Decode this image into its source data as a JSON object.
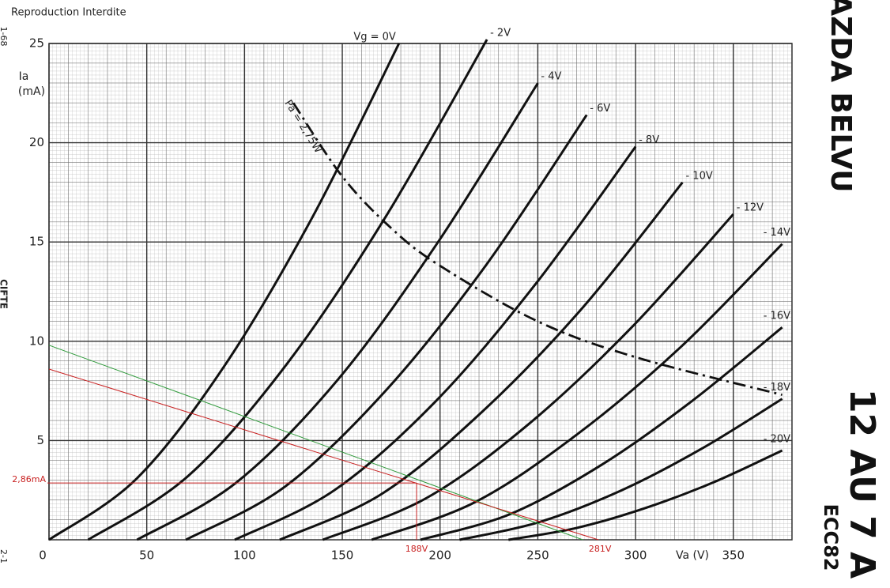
{
  "chart_data": {
    "type": "line",
    "title": "Reproduction Interdite",
    "xlabel": "Va (V)",
    "ylabel": [
      "Ia",
      "(mA)"
    ],
    "xlim": [
      0,
      380
    ],
    "ylim": [
      0,
      25
    ],
    "xticks": [
      0,
      50,
      100,
      150,
      200,
      250,
      300,
      350
    ],
    "yticks": [
      5,
      10,
      15,
      20,
      25
    ],
    "grid": true,
    "series": [
      {
        "name": "Vg = 0V",
        "color": "#111111",
        "x": [
          0,
          45,
          90,
          135,
          179
        ],
        "values": [
          0,
          3.1,
          8.8,
          16.3,
          25
        ]
      },
      {
        "name": "- 2V",
        "color": "#111111",
        "x": [
          20,
          71,
          122,
          173,
          224
        ],
        "values": [
          0,
          3.2,
          8.9,
          16.4,
          25.2
        ]
      },
      {
        "name": "- 4V",
        "color": "#111111",
        "x": [
          45,
          96,
          148,
          199,
          250
        ],
        "values": [
          0,
          2.9,
          8.1,
          15,
          23
        ]
      },
      {
        "name": "- 6V",
        "color": "#111111",
        "x": [
          70,
          121,
          173,
          224,
          275
        ],
        "values": [
          0,
          2.7,
          7.6,
          13.9,
          21.4
        ]
      },
      {
        "name": "- 8V",
        "color": "#111111",
        "x": [
          95,
          146,
          198,
          249,
          300
        ],
        "values": [
          0,
          2.5,
          7,
          12.9,
          19.8
        ]
      },
      {
        "name": "- 10V",
        "color": "#111111",
        "x": [
          118,
          170,
          221,
          273,
          324
        ],
        "values": [
          0,
          2.3,
          6.4,
          11.7,
          18
        ]
      },
      {
        "name": "- 12V",
        "color": "#111111",
        "x": [
          140,
          193,
          245,
          298,
          350
        ],
        "values": [
          0,
          2.1,
          5.8,
          10.7,
          16.4
        ]
      },
      {
        "name": "- 14V",
        "color": "#111111",
        "x": [
          165,
          218,
          270,
          323,
          375
        ],
        "values": [
          0,
          1.9,
          5.3,
          9.7,
          14.9
        ]
      },
      {
        "name": "- 16V",
        "color": "#111111",
        "x": [
          190,
          236,
          283,
          329,
          375
        ],
        "values": [
          0,
          1.3,
          3.8,
          7,
          10.7
        ]
      },
      {
        "name": "- 18V",
        "color": "#111111",
        "x": [
          210,
          251,
          293,
          334,
          375
        ],
        "values": [
          0,
          0.9,
          2.5,
          4.6,
          7.1
        ]
      },
      {
        "name": "- 20V",
        "color": "#111111",
        "x": [
          235,
          270,
          305,
          340,
          375
        ],
        "values": [
          0,
          0.6,
          1.6,
          2.9,
          4.5
        ]
      }
    ],
    "power_curve": {
      "name": "Pa = 2,75W",
      "color": "#111111",
      "x": [
        125,
        150,
        175,
        200,
        250,
        300,
        375
      ],
      "values": [
        22,
        18.3,
        15.7,
        13.8,
        11,
        9.2,
        7.3
      ]
    },
    "load_lines": [
      {
        "color": "#2e9a3a",
        "x": [
          0,
          273
        ],
        "values": [
          9.8,
          0
        ]
      },
      {
        "color": "#c82020",
        "x": [
          0,
          281
        ],
        "values": [
          8.6,
          0
        ],
        "end_label": "281V"
      }
    ],
    "operating_point": {
      "color": "#c82020",
      "x": 188,
      "y": 2.86,
      "x_label": "188V",
      "y_label": "2,86mA"
    }
  },
  "side_texts": {
    "brand": "MAZDA BELVU",
    "tube": "12 AU 7 A",
    "equivalent": "ECC82",
    "left_word": "CIFTE",
    "left_top": "1-68",
    "left_bottom": "2-1"
  }
}
